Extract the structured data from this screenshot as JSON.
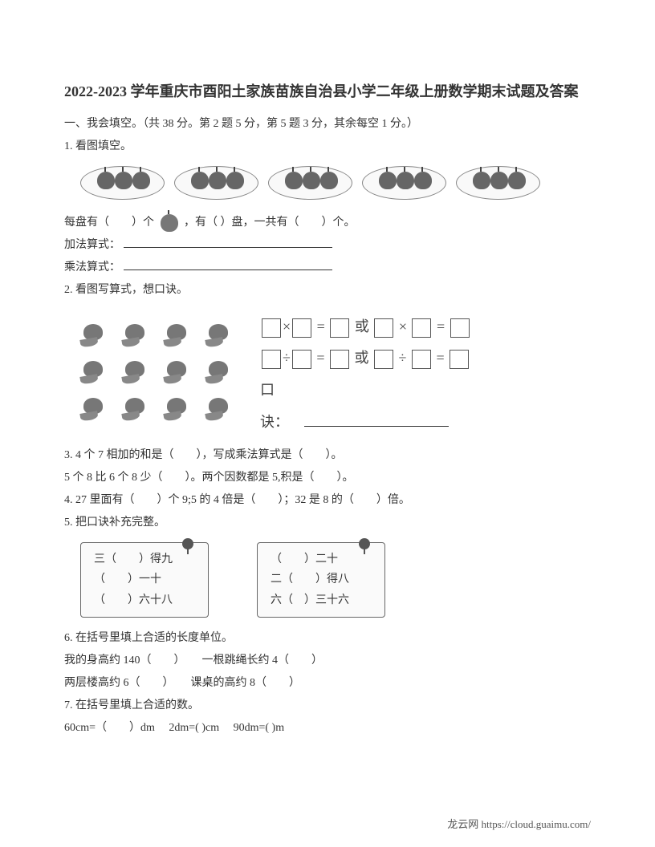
{
  "title": "2022-2023 学年重庆市酉阳土家族苗族自治县小学二年级上册数学期末试题及答案",
  "section1": {
    "heading": "一、我会填空。（共 38 分。第 2 题 5 分，第 5 题 3 分，其余每空 1 分。）",
    "q1": {
      "label": "1. 看图填空。",
      "sentence_a": "每盘有（　　）个",
      "sentence_b": "，有（ ）盘，一共有（　　）个。",
      "add_label": "加法算式：",
      "mul_label": "乘法算式："
    },
    "q2": {
      "label": "2. 看图写算式，想口诀。",
      "eq1_mid": " = ",
      "eq_or": "或",
      "koujue": "口诀："
    },
    "q3": {
      "line1": "3. 4 个 7 相加的和是（　　），写成乘法算式是（　　）。",
      "line2": "5 个 8 比 6 个 8 少（　　）。两个因数都是 5,积是（　　）。"
    },
    "q4": "4. 27 里面有（　　）个 9;5 的 4 倍是（　　）；32 是 8 的（　　）倍。",
    "q5": {
      "label": "5. 把口诀补充完整。",
      "card1": {
        "l1": "三（　　）得九",
        "l2": "（　　）一十",
        "l3": "（　　）六十八"
      },
      "card2": {
        "l1": "（　　）二十",
        "l2": "二（　　）得八",
        "l3": "六（　）三十六"
      }
    },
    "q6": {
      "label": "6. 在括号里填上合适的长度单位。",
      "line1": "我的身高约 140（　　）　　一根跳绳长约 4（　　）",
      "line2": "两层楼高约 6（　　）　　课桌的高约 8（　　）"
    },
    "q7": {
      "label": "7. 在括号里填上合适的数。",
      "line1": "60cm=（　　）dm　 2dm=( )cm　 90dm=( )m"
    }
  },
  "footer": "龙云网 https://cloud.guaimu.com/"
}
